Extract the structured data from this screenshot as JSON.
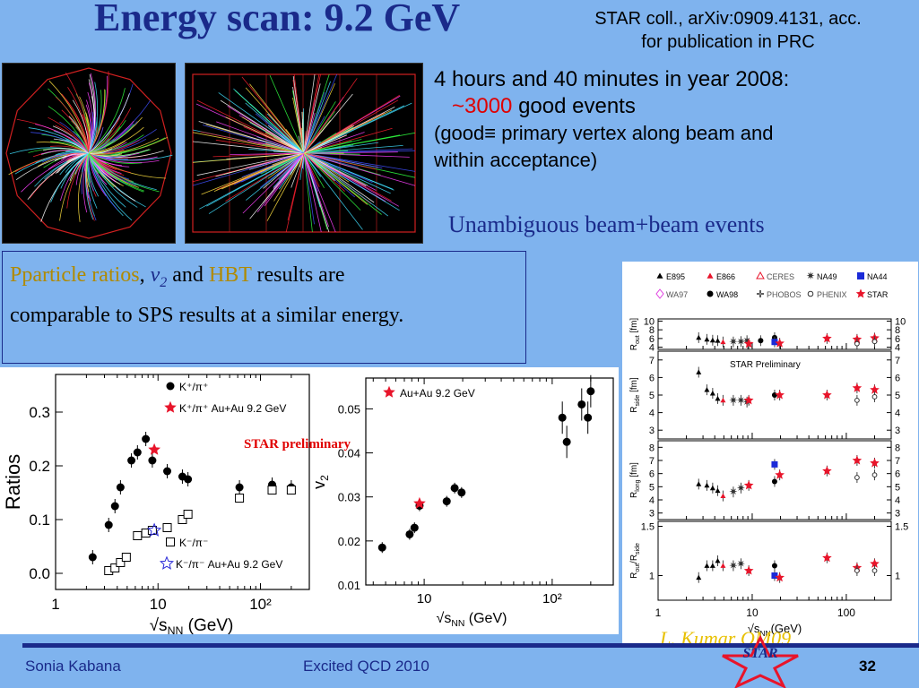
{
  "slide": {
    "title": "Energy scan: 9.2 GeV",
    "citation_line1": "STAR coll., arXiv:0909.4131, acc.",
    "citation_line2": "for publication in PRC",
    "info_line1": "4 hours and 40 minutes in year 2008:",
    "info_tilde": "~",
    "info_number": "3000",
    "info_good": " good events",
    "info_def1": "(good≡ primary vertex along beam and",
    "info_def2": "within acceptance)",
    "unambiguous": "Unambiguous beam+beam events",
    "results_p1": "Pparticle ratios",
    "results_comma": ", ",
    "results_v": "v",
    "results_v_sub": "2",
    "results_and": " and ",
    "results_hbt": "HBT",
    "results_rest1": " results are",
    "results_rest2": "comparable to SPS results at a similar energy.",
    "star_prelim": "STAR preliminary",
    "credit": "L. Kumar QM09",
    "logo_text": "STAR",
    "footer_author": "Sonia Kabana",
    "footer_conf": "Excited QCD 2010",
    "footer_page": "32",
    "colors": {
      "background": "#7fb3ee",
      "title": "#1a2a8a",
      "highlight": "#e00000",
      "gold": "#b08a00",
      "star_red": "#e8142a"
    }
  },
  "chart_data": [
    {
      "type": "scatter",
      "name_id": "ratios",
      "ylabel": "Ratios",
      "xlabel_prefix": "√",
      "xlabel_s": "s",
      "xlabel_sub": "NN",
      "xlabel_suffix": " (GeV)",
      "xscale": "log",
      "xlim": [
        1,
        300
      ],
      "ylim": [
        -0.03,
        0.37
      ],
      "yticks": [
        0.0,
        0.1,
        0.2,
        0.3
      ],
      "ytick_labels": [
        "0.0",
        "0.1",
        "0.2",
        "0.3"
      ],
      "xtick_labels": [
        "1",
        "10",
        "10²"
      ],
      "legend": [
        "K⁺/π⁺",
        "K⁺/π⁺ Au+Au 9.2 GeV",
        "K⁻/π⁻",
        "K⁻/π⁻ Au+Au 9.2 GeV"
      ],
      "series": [
        {
          "name": "K⁺/π⁺",
          "marker": "filled-circle",
          "x": [
            2.3,
            3.3,
            3.8,
            4.3,
            5.5,
            6.3,
            7.6,
            8.8,
            12.3,
            17.3,
            19.6,
            62.4,
            130,
            200
          ],
          "y": [
            0.03,
            0.09,
            0.125,
            0.16,
            0.21,
            0.225,
            0.25,
            0.21,
            0.19,
            0.18,
            0.175,
            0.16,
            0.165,
            0.16
          ]
        },
        {
          "name": "K⁺/π⁺ Au+Au 9.2 GeV",
          "marker": "red-star",
          "x": [
            9.2
          ],
          "y": [
            0.23
          ]
        },
        {
          "name": "K⁻/π⁻",
          "marker": "open-square",
          "x": [
            3.3,
            3.8,
            4.3,
            4.9,
            6.3,
            7.6,
            8.8,
            12.3,
            17.3,
            19.6,
            62.4,
            130,
            200
          ],
          "y": [
            0.005,
            0.01,
            0.02,
            0.03,
            0.07,
            0.075,
            0.08,
            0.085,
            0.1,
            0.11,
            0.14,
            0.155,
            0.155
          ]
        },
        {
          "name": "K⁻/π⁻ Au+Au 9.2 GeV",
          "marker": "open-star",
          "x": [
            9.2
          ],
          "y": [
            0.08
          ]
        }
      ]
    },
    {
      "type": "scatter",
      "name_id": "v2",
      "ylabel": "v",
      "ylabel_sub": "2",
      "xlabel_prefix": "√",
      "xlabel_s": "s",
      "xlabel_sub": "NN",
      "xlabel_suffix": " (GeV)",
      "xscale": "log",
      "xlim": [
        3.5,
        300
      ],
      "ylim": [
        0.01,
        0.057
      ],
      "yticks": [
        0.01,
        0.02,
        0.03,
        0.04,
        0.05
      ],
      "ytick_labels": [
        "0.01",
        "0.02",
        "0.03",
        "0.04",
        "0.05"
      ],
      "xtick_labels": [
        "10",
        "10²"
      ],
      "legend": [
        "Au+Au 9.2 GeV"
      ],
      "series": [
        {
          "name": "data",
          "marker": "filled-circle",
          "x": [
            4.7,
            7.7,
            8.4,
            9.2,
            15.0,
            17.3,
            19.6,
            120,
            130,
            170,
            190,
            200
          ],
          "y": [
            0.0185,
            0.0215,
            0.023,
            0.028,
            0.029,
            0.032,
            0.031,
            0.048,
            0.0425,
            0.051,
            0.048,
            0.054
          ]
        },
        {
          "name": "Au+Au 9.2 GeV",
          "marker": "red-star",
          "x": [
            9.2
          ],
          "y": [
            0.0285
          ]
        }
      ]
    },
    {
      "type": "scatter",
      "name_id": "hbt",
      "xlabel_prefix": "√",
      "xlabel_s": "s",
      "xlabel_sub": "NN",
      "xlabel_suffix": "(GeV)",
      "xscale": "log",
      "xlim": [
        1,
        300
      ],
      "xtick_labels": [
        "1",
        "10",
        "100"
      ],
      "prelim_label": "STAR Preliminary",
      "legend": [
        "E895",
        "E866",
        "CERES",
        "NA49",
        "NA44",
        "WA97",
        "WA98",
        "PHOBOS",
        "PHENIX",
        "STAR"
      ],
      "panels": [
        {
          "ylabel": "R",
          "ylabel_sub": "out",
          "ylabel_suffix": " [fm]",
          "ylim": [
            3.5,
            10.5
          ],
          "yticks": [
            4,
            6,
            8,
            10
          ],
          "points": [
            {
              "m": "tri",
              "x": 2.7,
              "y": 6.2
            },
            {
              "m": "tri",
              "x": 3.3,
              "y": 5.8
            },
            {
              "m": "tri",
              "x": 3.8,
              "y": 5.6
            },
            {
              "m": "tri",
              "x": 4.3,
              "y": 5.5
            },
            {
              "m": "redtri",
              "x": 4.9,
              "y": 5.2
            },
            {
              "m": "cross",
              "x": 6.3,
              "y": 5.2
            },
            {
              "m": "cross",
              "x": 7.6,
              "y": 5.3
            },
            {
              "m": "cross",
              "x": 8.8,
              "y": 5.5
            },
            {
              "m": "star",
              "x": 9.2,
              "y": 4.8
            },
            {
              "m": "dot",
              "x": 12.3,
              "y": 5.5
            },
            {
              "m": "dot",
              "x": 17.3,
              "y": 6.2
            },
            {
              "m": "sq",
              "x": 17.3,
              "y": 5.2
            },
            {
              "m": "star",
              "x": 19.6,
              "y": 4.9
            },
            {
              "m": "star",
              "x": 62.4,
              "y": 6.0
            },
            {
              "m": "star",
              "x": 130,
              "y": 5.8
            },
            {
              "m": "oc",
              "x": 130,
              "y": 4.8
            },
            {
              "m": "star",
              "x": 200,
              "y": 6.1
            },
            {
              "m": "oc",
              "x": 200,
              "y": 5.3
            }
          ]
        },
        {
          "ylabel": "R",
          "ylabel_sub": "side",
          "ylabel_suffix": " [fm]",
          "ylim": [
            2.5,
            7.5
          ],
          "yticks": [
            3,
            4,
            5,
            6,
            7
          ],
          "points": [
            {
              "m": "tri",
              "x": 2.7,
              "y": 6.3
            },
            {
              "m": "tri",
              "x": 3.3,
              "y": 5.3
            },
            {
              "m": "tri",
              "x": 3.8,
              "y": 5.1
            },
            {
              "m": "tri",
              "x": 4.3,
              "y": 4.8
            },
            {
              "m": "redtri",
              "x": 4.9,
              "y": 4.7
            },
            {
              "m": "cross",
              "x": 6.3,
              "y": 4.7
            },
            {
              "m": "cross",
              "x": 7.6,
              "y": 4.7
            },
            {
              "m": "cross",
              "x": 8.8,
              "y": 4.6
            },
            {
              "m": "star",
              "x": 9.2,
              "y": 4.7
            },
            {
              "m": "dot",
              "x": 17.3,
              "y": 5.0
            },
            {
              "m": "star",
              "x": 19.6,
              "y": 5.0
            },
            {
              "m": "star",
              "x": 62.4,
              "y": 5.0
            },
            {
              "m": "star",
              "x": 130,
              "y": 5.4
            },
            {
              "m": "oc",
              "x": 130,
              "y": 4.7
            },
            {
              "m": "star",
              "x": 200,
              "y": 5.3
            },
            {
              "m": "oc",
              "x": 200,
              "y": 4.9
            }
          ]
        },
        {
          "ylabel": "R",
          "ylabel_sub": "long",
          "ylabel_suffix": " [fm]",
          "ylim": [
            2.5,
            8.5
          ],
          "yticks": [
            3,
            4,
            5,
            6,
            7,
            8
          ],
          "points": [
            {
              "m": "tri",
              "x": 2.7,
              "y": 5.2
            },
            {
              "m": "tri",
              "x": 3.3,
              "y": 5.1
            },
            {
              "m": "tri",
              "x": 3.8,
              "y": 4.9
            },
            {
              "m": "tri",
              "x": 4.3,
              "y": 4.7
            },
            {
              "m": "redtri",
              "x": 4.9,
              "y": 4.3
            },
            {
              "m": "cross",
              "x": 6.3,
              "y": 4.6
            },
            {
              "m": "cross",
              "x": 7.6,
              "y": 4.9
            },
            {
              "m": "star",
              "x": 9.2,
              "y": 5.1
            },
            {
              "m": "dot",
              "x": 17.3,
              "y": 5.4
            },
            {
              "m": "sq",
              "x": 17.3,
              "y": 6.7
            },
            {
              "m": "star",
              "x": 19.6,
              "y": 5.9
            },
            {
              "m": "star",
              "x": 62.4,
              "y": 6.2
            },
            {
              "m": "star",
              "x": 130,
              "y": 7.0
            },
            {
              "m": "oc",
              "x": 130,
              "y": 5.7
            },
            {
              "m": "star",
              "x": 200,
              "y": 6.8
            },
            {
              "m": "oc",
              "x": 200,
              "y": 5.9
            }
          ]
        },
        {
          "ylabel": "R",
          "ylabel_sub": "out",
          "ylabel_suffix": "/R",
          "ylabel_sub2": "side",
          "ylim": [
            0.75,
            1.55
          ],
          "yticks": [
            1,
            1.5
          ],
          "points": [
            {
              "m": "tri",
              "x": 2.7,
              "y": 0.98
            },
            {
              "m": "tri",
              "x": 3.3,
              "y": 1.1
            },
            {
              "m": "tri",
              "x": 3.8,
              "y": 1.1
            },
            {
              "m": "tri",
              "x": 4.3,
              "y": 1.15
            },
            {
              "m": "redtri",
              "x": 4.9,
              "y": 1.1
            },
            {
              "m": "cross",
              "x": 6.3,
              "y": 1.1
            },
            {
              "m": "cross",
              "x": 7.6,
              "y": 1.12
            },
            {
              "m": "star",
              "x": 9.2,
              "y": 1.05
            },
            {
              "m": "dot",
              "x": 17.3,
              "y": 1.1
            },
            {
              "m": "sq",
              "x": 17.3,
              "y": 1.0
            },
            {
              "m": "star",
              "x": 19.6,
              "y": 0.98
            },
            {
              "m": "star",
              "x": 62.4,
              "y": 1.18
            },
            {
              "m": "star",
              "x": 130,
              "y": 1.08
            },
            {
              "m": "oc",
              "x": 130,
              "y": 1.05
            },
            {
              "m": "star",
              "x": 200,
              "y": 1.12
            },
            {
              "m": "oc",
              "x": 200,
              "y": 1.05
            }
          ]
        }
      ]
    }
  ]
}
